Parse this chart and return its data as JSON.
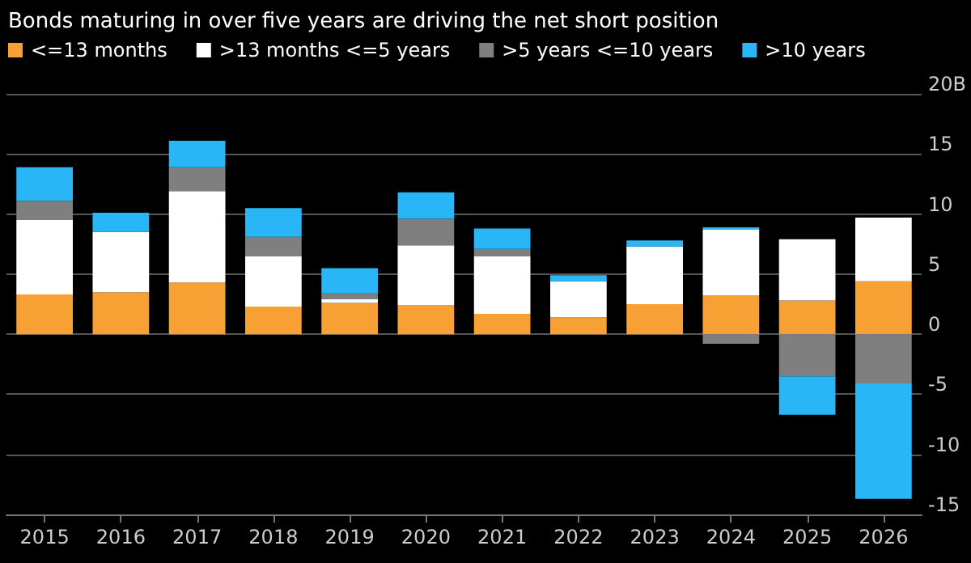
{
  "chart_data": {
    "type": "bar",
    "title": "Bonds maturing in over five years are driving the net short position",
    "categories": [
      "2015",
      "2016",
      "2017",
      "2018",
      "2019",
      "2020",
      "2021",
      "2022",
      "2023",
      "2024",
      "2025",
      "2026"
    ],
    "stacked": true,
    "legend": "top left",
    "grid": "y",
    "ylim": [
      -15,
      20
    ],
    "yticks": [
      -15,
      -10,
      -5,
      0,
      5,
      10,
      15,
      {
        "value": 20,
        "label": "20B"
      }
    ],
    "series": [
      {
        "name": "<=13 months",
        "color": "#f7a033",
        "values": [
          3.3,
          3.5,
          4.3,
          2.3,
          2.6,
          2.4,
          1.7,
          1.4,
          2.5,
          3.2,
          2.8,
          4.4
        ]
      },
      {
        "name": ">13 months <=5 years",
        "color": "#ffffff",
        "values": [
          6.2,
          5.0,
          7.6,
          4.2,
          0.3,
          5.0,
          4.8,
          3.0,
          4.8,
          5.5,
          5.1,
          5.3
        ]
      },
      {
        "name": ">5 years <=10 years",
        "color": "#7f7f7f",
        "values": [
          1.6,
          null,
          2.0,
          1.6,
          0.5,
          2.2,
          0.6,
          null,
          null,
          -0.8,
          -3.5,
          -4.1
        ]
      },
      {
        "name": ">10 years",
        "color": "#29b6f6",
        "values": [
          2.8,
          1.6,
          2.2,
          2.4,
          2.1,
          2.2,
          1.7,
          0.5,
          0.5,
          0.2,
          -3.2,
          -9.6
        ]
      }
    ]
  }
}
